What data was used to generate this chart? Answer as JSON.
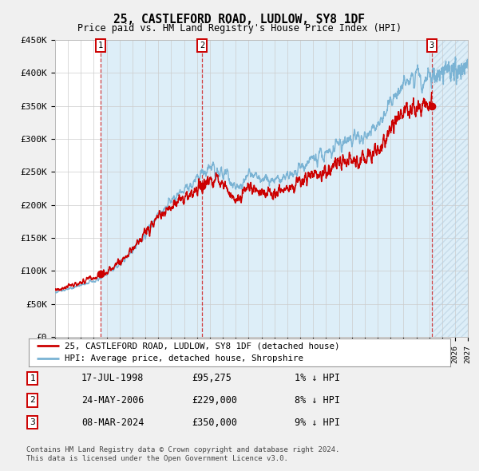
{
  "title": "25, CASTLEFORD ROAD, LUDLOW, SY8 1DF",
  "subtitle": "Price paid vs. HM Land Registry's House Price Index (HPI)",
  "legend_line1": "25, CASTLEFORD ROAD, LUDLOW, SY8 1DF (detached house)",
  "legend_line2": "HPI: Average price, detached house, Shropshire",
  "footnote1": "Contains HM Land Registry data © Crown copyright and database right 2024.",
  "footnote2": "This data is licensed under the Open Government Licence v3.0.",
  "transactions": [
    {
      "label": "1",
      "date": "17-JUL-1998",
      "price": 95275,
      "hpi_diff": "1% ↓ HPI",
      "x": 1998.54
    },
    {
      "label": "2",
      "date": "24-MAY-2006",
      "price": 229000,
      "hpi_diff": "8% ↓ HPI",
      "x": 2006.39
    },
    {
      "label": "3",
      "date": "08-MAR-2024",
      "price": 350000,
      "hpi_diff": "9% ↓ HPI",
      "x": 2024.18
    }
  ],
  "hpi_color": "#7ab3d4",
  "price_color": "#cc0000",
  "bg_color": "#f0f0f0",
  "plot_bg": "#ffffff",
  "grid_color": "#cccccc",
  "shade_color": "#ddeef8",
  "xmin": 1995,
  "xmax": 2027,
  "ymin": 0,
  "ymax": 450000,
  "ytick_vals": [
    0,
    50000,
    100000,
    150000,
    200000,
    250000,
    300000,
    350000,
    400000,
    450000
  ],
  "ytick_labels": [
    "£0",
    "£50K",
    "£100K",
    "£150K",
    "£200K",
    "£250K",
    "£300K",
    "£350K",
    "£400K",
    "£450K"
  ],
  "xticks": [
    1995,
    1996,
    1997,
    1998,
    1999,
    2000,
    2001,
    2002,
    2003,
    2004,
    2005,
    2006,
    2007,
    2008,
    2009,
    2010,
    2011,
    2012,
    2013,
    2014,
    2015,
    2016,
    2017,
    2018,
    2019,
    2020,
    2021,
    2022,
    2023,
    2024,
    2025,
    2026,
    2027
  ],
  "shade_start": 1998.54,
  "future_start": 2024.18,
  "hpi_anchors": {
    "1995": 68000,
    "1996": 72000,
    "1997": 78000,
    "1998": 85000,
    "1999": 95000,
    "2000": 110000,
    "2001": 130000,
    "2002": 158000,
    "2003": 185000,
    "2004": 205000,
    "2005": 220000,
    "2006": 240000,
    "2007": 258000,
    "2008": 248000,
    "2009": 228000,
    "2010": 245000,
    "2011": 240000,
    "2012": 236000,
    "2013": 242000,
    "2014": 258000,
    "2015": 272000,
    "2016": 278000,
    "2017": 290000,
    "2018": 298000,
    "2019": 303000,
    "2020": 318000,
    "2021": 355000,
    "2022": 385000,
    "2023": 388000,
    "2024": 395000,
    "2025": 398000,
    "2026": 402000,
    "2027": 406000
  }
}
